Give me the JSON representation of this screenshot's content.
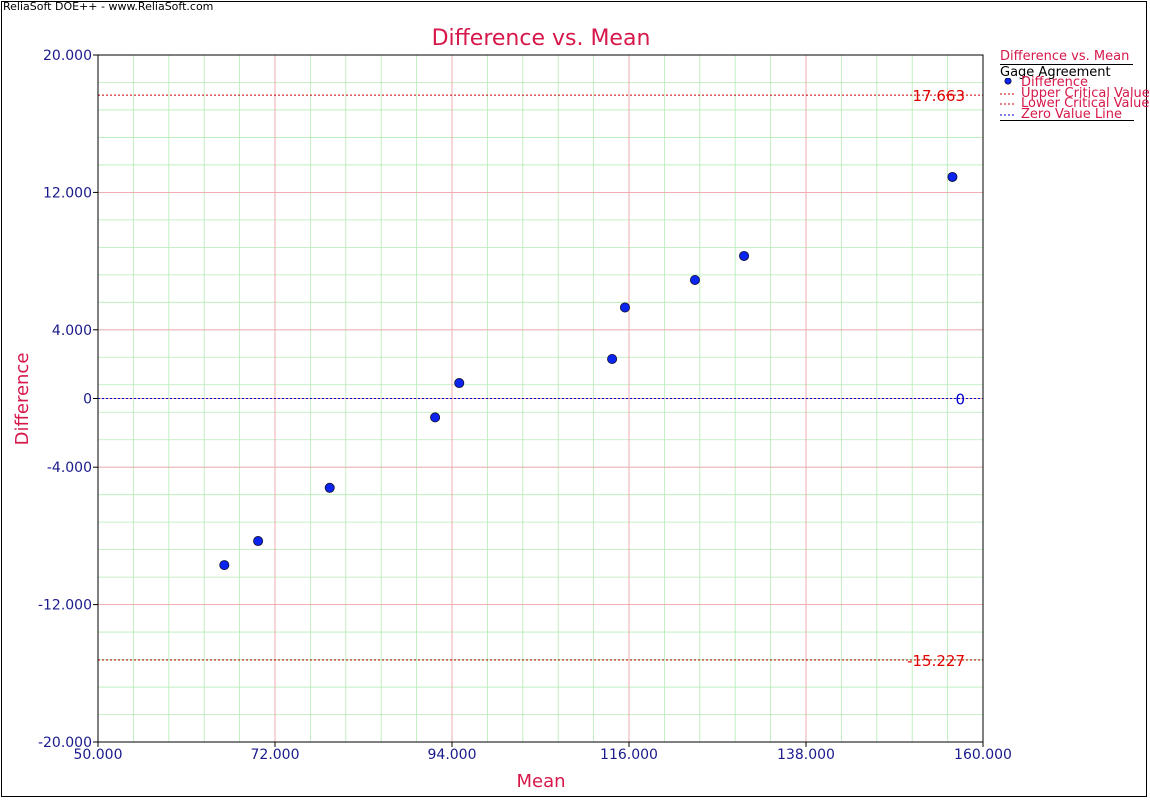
{
  "window": {
    "watermark": "ReliaSoft DOE++ - www.ReliaSoft.com"
  },
  "colors": {
    "title": "#d6184a",
    "axis_text": "#1a1a8c",
    "critical_line": "#c00000",
    "zero_line": "#0000cc",
    "point_fill": "#0b24f0",
    "grid_major": "#f3a4ad",
    "grid_minor": "#b6ecb6"
  },
  "chart_data": {
    "type": "scatter",
    "title": "Difference vs. Mean",
    "xlabel": "Mean",
    "ylabel": "Difference",
    "xlim": [
      50,
      160
    ],
    "ylim": [
      -20,
      20
    ],
    "x_ticks": [
      50,
      72,
      94,
      116,
      138,
      160
    ],
    "y_ticks": [
      -20,
      -12,
      -4,
      0,
      4,
      12,
      20
    ],
    "x_tick_labels": [
      "50.000",
      "72.000",
      "94.000",
      "116.000",
      "138.000",
      "160.000"
    ],
    "y_tick_labels": [
      "-20.000",
      "-12.000",
      "-4.000",
      "0",
      "4.000",
      "12.000",
      "20.000"
    ],
    "grid": true,
    "legend": {
      "placement": "right",
      "title": "Difference vs. Mean",
      "subtitle": "Gage Agreement",
      "entries": [
        "Difference",
        "Upper Critical Value",
        "Lower Critical Value",
        "Zero Value Line"
      ]
    },
    "series": [
      {
        "name": "Difference",
        "x": [
          65.7,
          69.9,
          78.8,
          91.9,
          94.9,
          113.9,
          115.5,
          124.2,
          130.3,
          156.2
        ],
        "y": [
          -9.7,
          -8.3,
          -5.2,
          -1.1,
          0.9,
          2.3,
          5.3,
          6.9,
          8.3,
          12.9
        ]
      }
    ],
    "reference_lines": [
      {
        "name": "Upper Critical Value",
        "y": 17.663,
        "label": "17.663"
      },
      {
        "name": "Lower Critical Value",
        "y": -15.227,
        "label": "-15.227"
      },
      {
        "name": "Zero Value Line",
        "y": 0,
        "label": "0"
      }
    ]
  }
}
